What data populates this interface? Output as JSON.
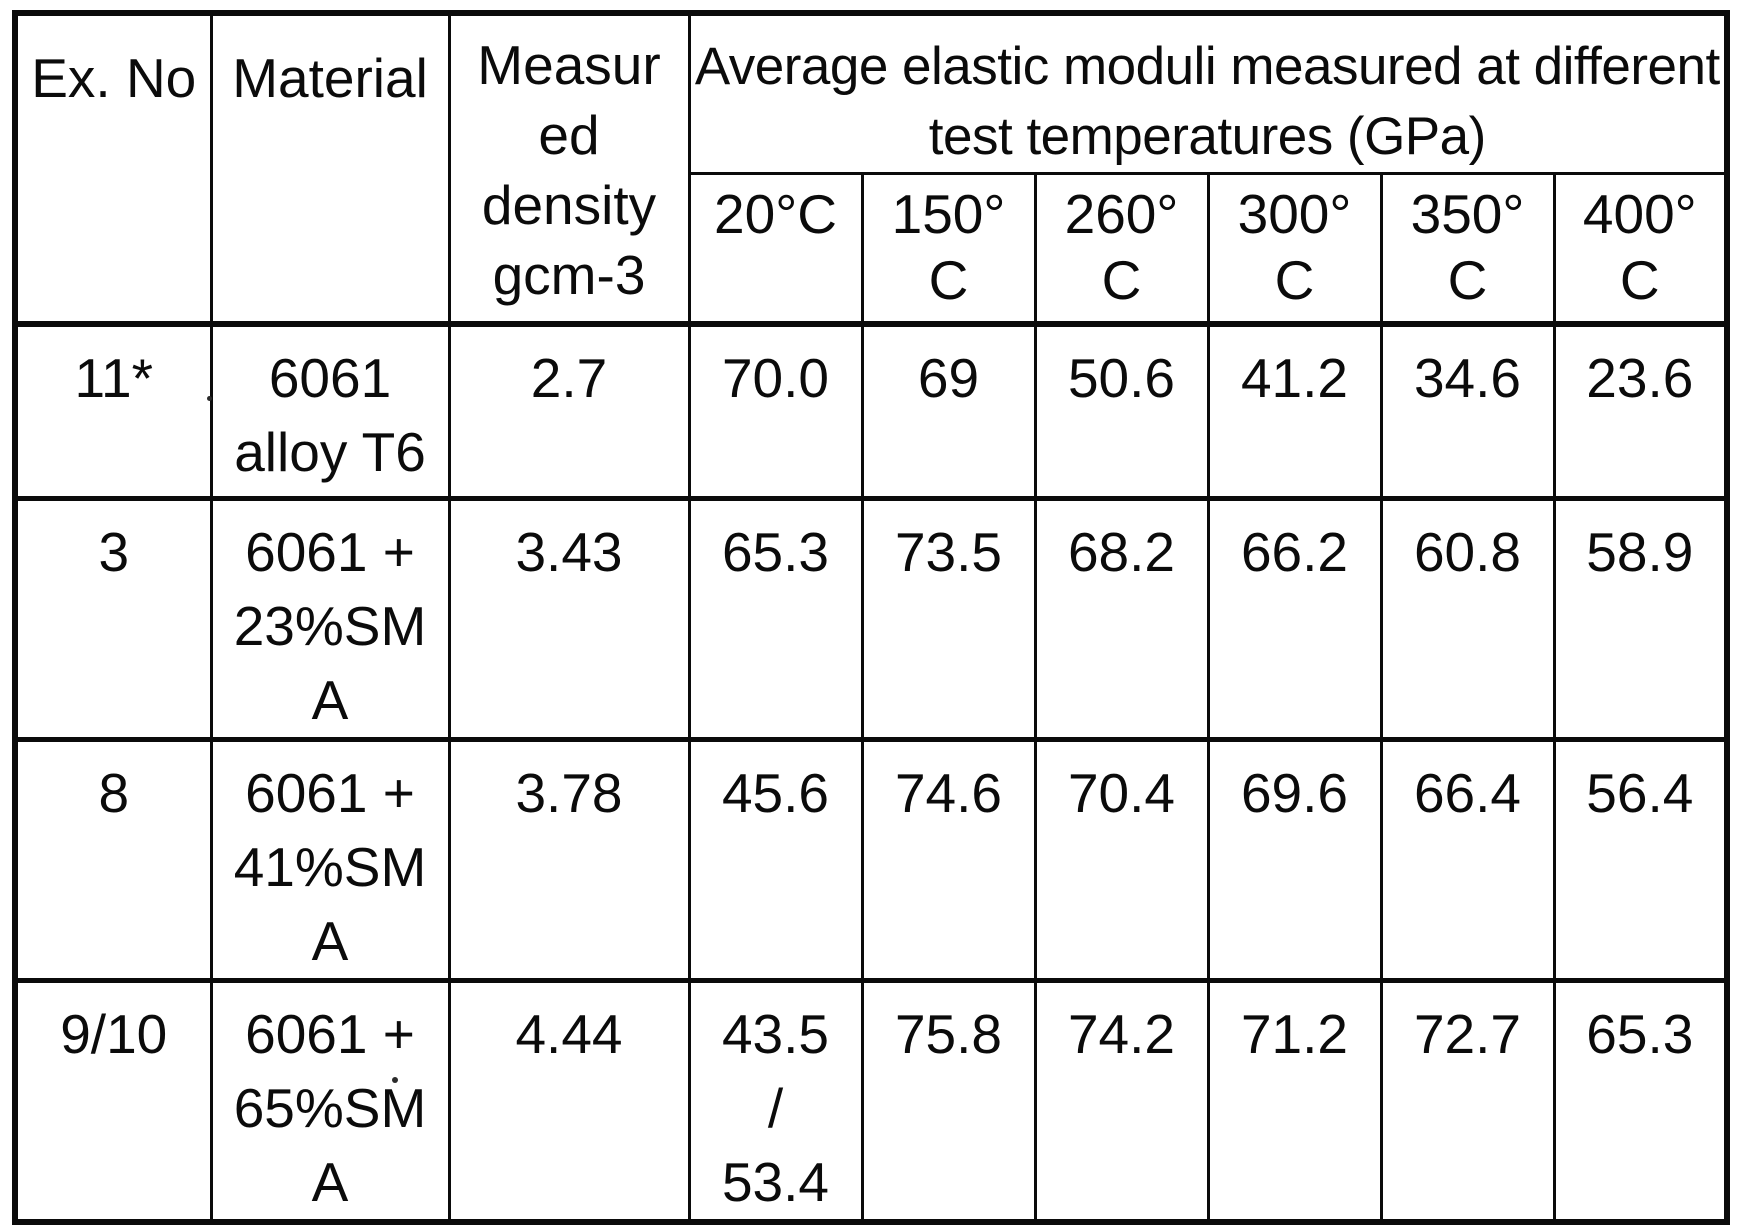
{
  "table": {
    "columns": {
      "ex_no": "Ex. No",
      "material": "Material",
      "density": "Measur\ned\ndensity\ngcm-3",
      "moduli_group": "Average elastic moduli measured at different\ntest temperatures (GPa)",
      "temperatures": [
        "20°C",
        "150°\nC",
        "260°\nC",
        "300°\nC",
        "350°\nC",
        "400°\nC"
      ]
    },
    "rows": [
      {
        "ex_no": "11*",
        "material": "6061\nalloy T6",
        "density": "2.7",
        "moduli": [
          "70.0",
          "69",
          "50.6",
          "41.2",
          "34.6",
          "23.6"
        ]
      },
      {
        "ex_no": "3",
        "material": "6061 +\n23%SM\nA",
        "density": "3.43",
        "moduli": [
          "65.3",
          "73.5",
          "68.2",
          "66.2",
          "60.8",
          "58.9"
        ]
      },
      {
        "ex_no": "8",
        "material": "6061 +\n41%SM\nA",
        "density": "3.78",
        "moduli": [
          "45.6",
          "74.6",
          "70.4",
          "69.6",
          "66.4",
          "56.4"
        ]
      },
      {
        "ex_no": "9/10",
        "material": "6061 +\n65%SM\nA",
        "density": "4.44",
        "moduli": [
          "43.5\n/\n53.4",
          "75.8",
          "74.2",
          "71.2",
          "72.7",
          "65.3"
        ]
      }
    ]
  }
}
